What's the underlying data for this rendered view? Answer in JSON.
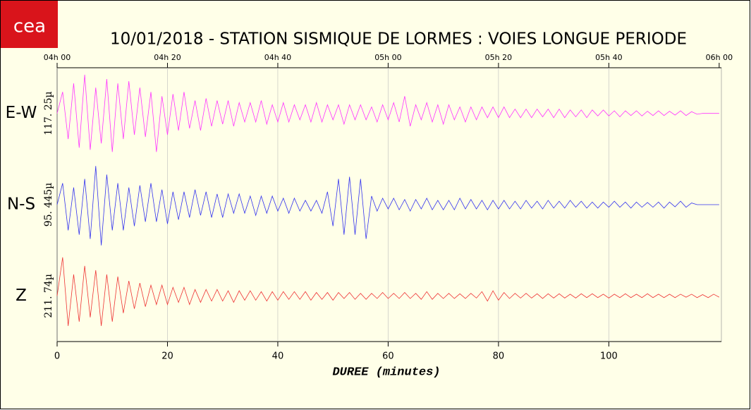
{
  "logo": "cea",
  "chart_data": {
    "type": "line",
    "title": "10/01/2018  -  STATION SISMIQUE DE LORMES : VOIES LONGUE PERIODE",
    "xlabel": "DUREE (minutes)",
    "xlim": [
      0,
      120.4
    ],
    "ylim": [
      -1,
      1
    ],
    "xticks": [
      0,
      20,
      40,
      60,
      80,
      100
    ],
    "top_xticks": [
      {
        "value": 0,
        "label": "04h 00"
      },
      {
        "value": 20,
        "label": "04h 20"
      },
      {
        "value": 40,
        "label": "04h 40"
      },
      {
        "value": 60,
        "label": "05h 00"
      },
      {
        "value": 80,
        "label": "05h 20"
      },
      {
        "value": 100,
        "label": "05h 40"
      },
      {
        "value": 120,
        "label": "06h 00"
      }
    ],
    "grid": true,
    "x": [
      0,
      1,
      2,
      3,
      4,
      5,
      6,
      7,
      8,
      9,
      10,
      11,
      12,
      13,
      14,
      15,
      16,
      17,
      18,
      19,
      20,
      21,
      22,
      23,
      24,
      25,
      26,
      27,
      28,
      29,
      30,
      31,
      32,
      33,
      34,
      35,
      36,
      37,
      38,
      39,
      40,
      41,
      42,
      43,
      44,
      45,
      46,
      47,
      48,
      49,
      50,
      51,
      52,
      53,
      54,
      55,
      56,
      57,
      58,
      59,
      60,
      61,
      62,
      63,
      64,
      65,
      66,
      67,
      68,
      69,
      70,
      71,
      72,
      73,
      74,
      75,
      76,
      77,
      78,
      79,
      80,
      81,
      82,
      83,
      84,
      85,
      86,
      87,
      88,
      89,
      90,
      91,
      92,
      93,
      94,
      95,
      96,
      97,
      98,
      99,
      100,
      101,
      102,
      103,
      104,
      105,
      106,
      107,
      108,
      109,
      110,
      111,
      112,
      113,
      114,
      115,
      116,
      117,
      118,
      119,
      120
    ],
    "series": [
      {
        "name": "E-W",
        "scale_label": "117. 25µ",
        "color": "#ff33ff",
        "values": [
          0,
          0.5,
          -0.6,
          0.7,
          -0.8,
          0.9,
          -0.85,
          0.6,
          -0.7,
          0.8,
          -0.9,
          0.7,
          -0.6,
          0.75,
          -0.5,
          0.6,
          -0.55,
          0.5,
          -0.9,
          0.4,
          -0.5,
          0.45,
          -0.4,
          0.5,
          -0.35,
          0.3,
          -0.4,
          0.35,
          -0.3,
          0.3,
          -0.25,
          0.3,
          -0.3,
          0.25,
          -0.2,
          0.25,
          -0.2,
          0.3,
          -0.25,
          0.2,
          -0.2,
          0.25,
          -0.2,
          0.2,
          -0.15,
          0.2,
          -0.2,
          0.25,
          -0.2,
          0.2,
          -0.15,
          0.2,
          -0.25,
          0.2,
          -0.15,
          0.2,
          -0.15,
          0.15,
          -0.2,
          0.2,
          -0.15,
          0.25,
          -0.2,
          0.4,
          -0.3,
          0.2,
          -0.15,
          0.25,
          -0.2,
          0.2,
          -0.25,
          0.2,
          -0.15,
          0.15,
          -0.2,
          0.15,
          -0.15,
          0.15,
          -0.1,
          0.15,
          -0.1,
          0.15,
          -0.1,
          0.1,
          -0.1,
          0.1,
          -0.1,
          0.1,
          -0.08,
          0.1,
          -0.1,
          0.1,
          -0.1,
          0.08,
          -0.08,
          0.08,
          -0.1,
          0.08,
          -0.06,
          0.08,
          -0.06,
          0.06,
          -0.08,
          0.06,
          -0.05,
          0.06,
          -0.06,
          0.05,
          -0.05,
          0.06,
          -0.05,
          0.05,
          -0.04,
          0.06,
          -0.05,
          0.04,
          -0.02,
          0,
          0,
          0,
          0
        ]
      },
      {
        "name": "N-S",
        "scale_label": "95. 445µ",
        "color": "#3333ee",
        "values": [
          0,
          0.5,
          -0.6,
          0.4,
          -0.7,
          0.6,
          -0.8,
          0.9,
          -0.95,
          0.7,
          -0.6,
          0.5,
          -0.6,
          0.4,
          -0.5,
          0.45,
          -0.4,
          0.5,
          -0.4,
          0.35,
          -0.45,
          0.3,
          -0.35,
          0.3,
          -0.3,
          0.35,
          -0.25,
          0.3,
          -0.3,
          0.25,
          -0.3,
          0.25,
          -0.2,
          0.25,
          -0.2,
          0.2,
          -0.25,
          0.2,
          -0.2,
          0.2,
          -0.15,
          0.15,
          -0.2,
          0.15,
          -0.15,
          0.1,
          -0.15,
          0.1,
          -0.2,
          0.3,
          -0.5,
          0.6,
          -0.7,
          0.65,
          -0.7,
          0.6,
          -0.8,
          0.2,
          -0.15,
          0.15,
          -0.1,
          0.15,
          -0.12,
          0.12,
          -0.15,
          0.12,
          -0.1,
          0.15,
          -0.12,
          0.1,
          -0.12,
          0.1,
          -0.12,
          0.15,
          -0.1,
          0.12,
          -0.1,
          0.1,
          -0.12,
          0.1,
          -0.1,
          0.1,
          -0.1,
          0.08,
          -0.1,
          0.1,
          -0.08,
          0.08,
          -0.1,
          0.1,
          -0.08,
          0.08,
          -0.08,
          0.1,
          -0.06,
          0.08,
          -0.08,
          0.06,
          -0.08,
          0.06,
          -0.06,
          0.08,
          -0.06,
          0.06,
          -0.08,
          0.06,
          -0.06,
          0.05,
          -0.06,
          0.06,
          -0.08,
          0.06,
          -0.05,
          0.08,
          -0.06,
          0.04,
          0,
          0,
          0,
          0,
          0
        ]
      },
      {
        "name": "Z",
        "scale_label": "211. 74µ",
        "color": "#ee3333",
        "values": [
          0,
          0.9,
          -0.7,
          0.5,
          -0.6,
          0.7,
          -0.5,
          0.6,
          -0.7,
          0.5,
          -0.6,
          0.45,
          -0.4,
          0.35,
          -0.3,
          0.3,
          -0.25,
          0.25,
          -0.2,
          0.25,
          -0.2,
          0.2,
          -0.15,
          0.2,
          -0.2,
          0.15,
          -0.15,
          0.15,
          -0.12,
          0.15,
          -0.12,
          0.12,
          -0.15,
          0.12,
          -0.1,
          0.12,
          -0.1,
          0.1,
          -0.12,
          0.1,
          -0.1,
          0.1,
          -0.08,
          0.1,
          -0.08,
          0.1,
          -0.1,
          0.08,
          -0.08,
          0.08,
          -0.1,
          0.08,
          -0.06,
          0.08,
          -0.08,
          0.06,
          -0.08,
          0.06,
          -0.06,
          0.08,
          -0.06,
          0.06,
          -0.06,
          0.08,
          -0.06,
          0.06,
          -0.08,
          0.1,
          -0.08,
          0.06,
          -0.06,
          0.06,
          -0.06,
          0.05,
          -0.06,
          0.06,
          -0.05,
          0.1,
          -0.12,
          0.12,
          -0.1,
          0.08,
          -0.06,
          0.06,
          -0.05,
          0.06,
          -0.05,
          0.05,
          -0.06,
          0.05,
          -0.05,
          0.05,
          -0.05,
          0.04,
          -0.05,
          0.05,
          -0.04,
          0.05,
          -0.04,
          0.04,
          -0.05,
          0.04,
          -0.04,
          0.05,
          -0.04,
          0.04,
          -0.04,
          0.05,
          -0.04,
          0.04,
          -0.04,
          0.04,
          -0.04,
          0.04,
          -0.03,
          0.04,
          -0.04,
          0.03,
          -0.04,
          0.04,
          -0.03
        ]
      }
    ]
  }
}
